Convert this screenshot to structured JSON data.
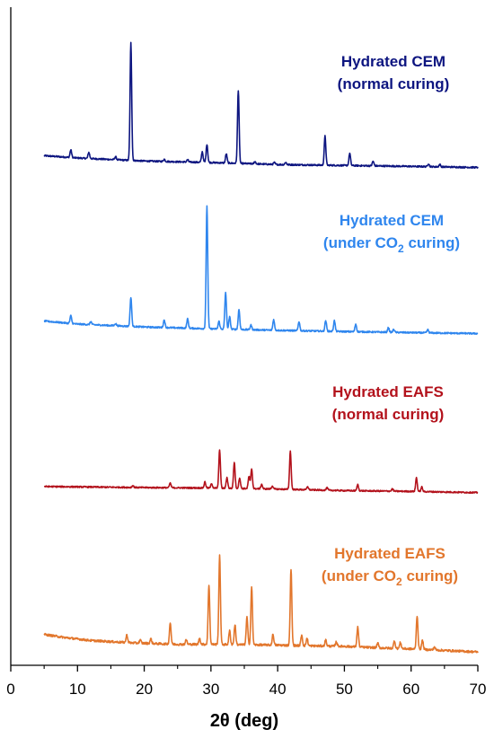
{
  "chart_data": {
    "type": "line",
    "title": "",
    "xlabel": "2θ (deg)",
    "ylabel": "",
    "xlim": [
      0,
      70
    ],
    "x_ticks": [
      0,
      10,
      20,
      30,
      40,
      50,
      60,
      70
    ],
    "y_ticks_shown": false,
    "grid": false,
    "legend": "none",
    "series": [
      {
        "name": "Hydrated CEM (normal curing)",
        "label_lines": [
          "Hydrated CEM",
          "(normal curing)"
        ],
        "label_sub": [
          "",
          ""
        ],
        "label_tail": [
          "",
          ""
        ],
        "color": "#0d1580",
        "baseline": [
          [
            5,
            8
          ],
          [
            10,
            6.5
          ],
          [
            20,
            4.5
          ],
          [
            30,
            3.5
          ],
          [
            40,
            2.2
          ],
          [
            50,
            1.6
          ],
          [
            60,
            1
          ],
          [
            70,
            0.3
          ]
        ],
        "noise": 0.5,
        "peaks": [
          [
            9,
            5
          ],
          [
            11.7,
            4
          ],
          [
            15.7,
            2
          ],
          [
            18,
            77
          ],
          [
            23,
            1.5
          ],
          [
            26.5,
            1.5
          ],
          [
            28.7,
            7
          ],
          [
            29.4,
            12
          ],
          [
            32.3,
            6
          ],
          [
            34.1,
            48
          ],
          [
            36.6,
            1.5
          ],
          [
            39.5,
            1.2
          ],
          [
            41.2,
            1.5
          ],
          [
            47.1,
            19
          ],
          [
            50.8,
            8
          ],
          [
            54.3,
            3
          ],
          [
            62.6,
            2
          ],
          [
            64.3,
            1.5
          ]
        ]
      },
      {
        "name": "Hydrated CEM (under CO2 curing)",
        "label_lines": [
          "Hydrated CEM",
          "(under CO"
        ],
        "label_sub": [
          "",
          "2"
        ],
        "label_tail": [
          "",
          " curing)"
        ],
        "color": "#2f86ee",
        "baseline": [
          [
            5,
            8.5
          ],
          [
            10,
            6.5
          ],
          [
            20,
            4.6
          ],
          [
            30,
            3.4
          ],
          [
            40,
            2.4
          ],
          [
            50,
            1.6
          ],
          [
            60,
            0.9
          ],
          [
            70,
            0.3
          ]
        ],
        "noise": 0.5,
        "peaks": [
          [
            9,
            5
          ],
          [
            12,
            2
          ],
          [
            15.7,
            1.5
          ],
          [
            18,
            19
          ],
          [
            23,
            5
          ],
          [
            26.5,
            6
          ],
          [
            29.4,
            80
          ],
          [
            31.2,
            5
          ],
          [
            32.2,
            24
          ],
          [
            32.8,
            8
          ],
          [
            34.2,
            13
          ],
          [
            36,
            3
          ],
          [
            39.4,
            7
          ],
          [
            43.2,
            6
          ],
          [
            47.2,
            7
          ],
          [
            48.5,
            7
          ],
          [
            51.7,
            5
          ],
          [
            56.6,
            3
          ],
          [
            57.4,
            2
          ],
          [
            62.5,
            2
          ]
        ]
      },
      {
        "name": "Hydrated EAFS (normal curing)",
        "label_lines": [
          "Hydrated EAFS",
          "(normal curing)"
        ],
        "label_sub": [
          "",
          ""
        ],
        "label_tail": [
          "",
          ""
        ],
        "color": "#b3121c",
        "baseline": [
          [
            5,
            4.2
          ],
          [
            20,
            3.5
          ],
          [
            30,
            3.2
          ],
          [
            40,
            2.5
          ],
          [
            50,
            1.5
          ],
          [
            60,
            1
          ],
          [
            70,
            0.2
          ]
        ],
        "noise": 0.45,
        "peaks": [
          [
            18.3,
            1.2
          ],
          [
            23.9,
            3
          ],
          [
            29.1,
            4
          ],
          [
            30.1,
            3
          ],
          [
            31.3,
            25
          ],
          [
            32.4,
            7
          ],
          [
            33.5,
            17
          ],
          [
            34.3,
            7
          ],
          [
            35.7,
            8
          ],
          [
            36.1,
            13
          ],
          [
            37.6,
            3
          ],
          [
            39.2,
            2
          ],
          [
            41.9,
            25
          ],
          [
            44.5,
            2
          ],
          [
            47.4,
            1.5
          ],
          [
            52,
            4
          ],
          [
            57.2,
            1.5
          ],
          [
            60.8,
            9
          ],
          [
            61.6,
            3
          ]
        ]
      },
      {
        "name": "Hydrated EAFS (under CO2 curing)",
        "label_lines": [
          "Hydrated EAFS",
          "(under CO"
        ],
        "label_sub": [
          "",
          "2"
        ],
        "label_tail": [
          "",
          " curing)"
        ],
        "color": "#e2762c",
        "baseline": [
          [
            5,
            12
          ],
          [
            8,
            10
          ],
          [
            12,
            8
          ],
          [
            18,
            6.5
          ],
          [
            25,
            5.5
          ],
          [
            30,
            5.5
          ],
          [
            40,
            5
          ],
          [
            45,
            4.5
          ],
          [
            50,
            4.2
          ],
          [
            55,
            3.2
          ],
          [
            60,
            2.5
          ],
          [
            65,
            1.5
          ],
          [
            70,
            0.5
          ]
        ],
        "noise": 0.7,
        "peaks": [
          [
            17.4,
            5
          ],
          [
            19.4,
            2
          ],
          [
            21,
            3
          ],
          [
            23.9,
            14
          ],
          [
            26.3,
            3
          ],
          [
            28.3,
            4
          ],
          [
            29.7,
            39
          ],
          [
            31.3,
            58
          ],
          [
            32.8,
            9
          ],
          [
            33.6,
            13
          ],
          [
            35.4,
            18
          ],
          [
            36.1,
            38
          ],
          [
            39.3,
            7
          ],
          [
            42,
            50
          ],
          [
            43.6,
            7
          ],
          [
            44.4,
            5
          ],
          [
            47.2,
            4
          ],
          [
            48.8,
            3
          ],
          [
            52,
            13
          ],
          [
            55,
            3
          ],
          [
            57.5,
            5
          ],
          [
            58.4,
            4
          ],
          [
            60.9,
            22
          ],
          [
            61.7,
            6
          ],
          [
            63.5,
            2
          ]
        ]
      }
    ]
  }
}
